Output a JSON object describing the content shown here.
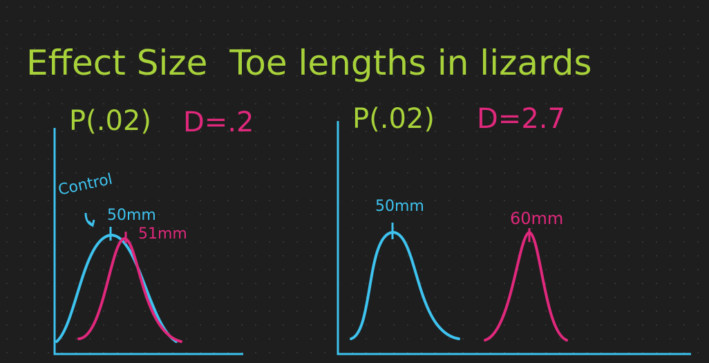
{
  "title": "Effect Size  Toe lengths in lizards",
  "panels": [
    {
      "p_label": "P(.02)",
      "d_label": "D=.2",
      "curve_labels": [
        "Control",
        "50mm",
        "51mm"
      ]
    },
    {
      "p_label": "P(.02)",
      "d_label": "D=2.7",
      "curve_labels": [
        "50mm",
        "60mm"
      ]
    }
  ]
}
